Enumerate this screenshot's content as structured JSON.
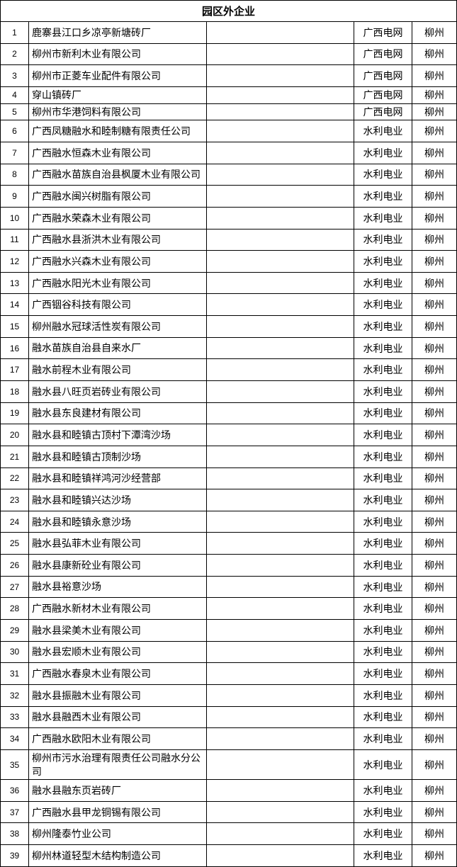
{
  "table": {
    "title": "园区外企业",
    "rows": [
      {
        "no": "1",
        "name": "鹿寨县江口乡凉亭新塘砖厂",
        "blank": "",
        "grid": "广西电网",
        "city": "柳州"
      },
      {
        "no": "2",
        "name": "柳州市新利木业有限公司",
        "blank": "",
        "grid": "广西电网",
        "city": "柳州"
      },
      {
        "no": "3",
        "name": "柳州市正菱车业配件有限公司",
        "blank": "",
        "grid": "广西电网",
        "city": "柳州"
      },
      {
        "no": "4",
        "name": "穿山镇砖厂",
        "blank": "",
        "grid": "广西电网",
        "city": "柳州"
      },
      {
        "no": "5",
        "name": "柳州市华港饲料有限公司",
        "blank": "",
        "grid": "广西电网",
        "city": "柳州"
      },
      {
        "no": "6",
        "name": "广西凤糖融水和睦制糖有限责任公司",
        "blank": "",
        "grid": "水利电业",
        "city": "柳州"
      },
      {
        "no": "7",
        "name": "广西融水恒森木业有限公司",
        "blank": "",
        "grid": "水利电业",
        "city": "柳州"
      },
      {
        "no": "8",
        "name": "广西融水苗族自治县枫厦木业有限公司",
        "blank": "",
        "grid": "水利电业",
        "city": "柳州"
      },
      {
        "no": "9",
        "name": "广西融水闽兴树脂有限公司",
        "blank": "",
        "grid": "水利电业",
        "city": "柳州"
      },
      {
        "no": "10",
        "name": "广西融水荣森木业有限公司",
        "blank": "",
        "grid": "水利电业",
        "city": "柳州"
      },
      {
        "no": "11",
        "name": "广西融水县浙洪木业有限公司",
        "blank": "",
        "grid": "水利电业",
        "city": "柳州"
      },
      {
        "no": "12",
        "name": "广西融水兴森木业有限公司",
        "blank": "",
        "grid": "水利电业",
        "city": "柳州"
      },
      {
        "no": "13",
        "name": "广西融水阳光木业有限公司",
        "blank": "",
        "grid": "水利电业",
        "city": "柳州"
      },
      {
        "no": "14",
        "name": "广西铟谷科技有限公司",
        "blank": "",
        "grid": "水利电业",
        "city": "柳州"
      },
      {
        "no": "15",
        "name": "柳州融水冠球活性炭有限公司",
        "blank": "",
        "grid": "水利电业",
        "city": "柳州"
      },
      {
        "no": "16",
        "name": "融水苗族自治县自来水厂",
        "blank": "",
        "grid": "水利电业",
        "city": "柳州"
      },
      {
        "no": "17",
        "name": "融水前程木业有限公司",
        "blank": "",
        "grid": "水利电业",
        "city": "柳州"
      },
      {
        "no": "18",
        "name": "融水县八旺页岩砖业有限公司",
        "blank": "",
        "grid": "水利电业",
        "city": "柳州"
      },
      {
        "no": "19",
        "name": "融水县东良建材有限公司",
        "blank": "",
        "grid": "水利电业",
        "city": "柳州"
      },
      {
        "no": "20",
        "name": "融水县和睦镇古顶村下潭湾沙场",
        "blank": "",
        "grid": "水利电业",
        "city": "柳州"
      },
      {
        "no": "21",
        "name": "融水县和睦镇古顶制沙场",
        "blank": "",
        "grid": "水利电业",
        "city": "柳州"
      },
      {
        "no": "22",
        "name": "融水县和睦镇祥鸿河沙经营部",
        "blank": "",
        "grid": "水利电业",
        "city": "柳州"
      },
      {
        "no": "23",
        "name": "融水县和睦镇兴达沙场",
        "blank": "",
        "grid": "水利电业",
        "city": "柳州"
      },
      {
        "no": "24",
        "name": "融水县和睦镇永意沙场",
        "blank": "",
        "grid": "水利电业",
        "city": "柳州"
      },
      {
        "no": "25",
        "name": "融水县弘菲木业有限公司",
        "blank": "",
        "grid": "水利电业",
        "city": "柳州"
      },
      {
        "no": "26",
        "name": "融水县康新砼业有限公司",
        "blank": "",
        "grid": "水利电业",
        "city": "柳州"
      },
      {
        "no": "27",
        "name": "融水县裕意沙场",
        "blank": "",
        "grid": "水利电业",
        "city": "柳州"
      },
      {
        "no": "28",
        "name": "广西融水新材木业有限公司",
        "blank": "",
        "grid": "水利电业",
        "city": "柳州"
      },
      {
        "no": "29",
        "name": "融水县梁美木业有限公司",
        "blank": "",
        "grid": "水利电业",
        "city": "柳州"
      },
      {
        "no": "30",
        "name": "融水县宏顺木业有限公司",
        "blank": "",
        "grid": "水利电业",
        "city": "柳州"
      },
      {
        "no": "31",
        "name": "广西融水春泉木业有限公司",
        "blank": "",
        "grid": "水利电业",
        "city": "柳州"
      },
      {
        "no": "32",
        "name": "融水县振融木业有限公司",
        "blank": "",
        "grid": "水利电业",
        "city": "柳州"
      },
      {
        "no": "33",
        "name": "融水县融西木业有限公司",
        "blank": "",
        "grid": "水利电业",
        "city": "柳州"
      },
      {
        "no": "34",
        "name": "广西融水欧阳木业有限公司",
        "blank": "",
        "grid": "水利电业",
        "city": "柳州"
      },
      {
        "no": "35",
        "name": "柳州市污水治理有限责任公司融水分公司",
        "blank": "",
        "grid": "水利电业",
        "city": "柳州"
      },
      {
        "no": "36",
        "name": "融水县融东页岩砖厂",
        "blank": "",
        "grid": "水利电业",
        "city": "柳州"
      },
      {
        "no": "37",
        "name": "广西融水县甲龙铜锡有限公司",
        "blank": "",
        "grid": "水利电业",
        "city": "柳州"
      },
      {
        "no": "38",
        "name": "柳州隆泰竹业公司",
        "blank": "",
        "grid": "水利电业",
        "city": "柳州"
      },
      {
        "no": "39",
        "name": "柳州林道轻型木结构制造公司",
        "blank": "",
        "grid": "水利电业",
        "city": "柳州"
      }
    ]
  }
}
